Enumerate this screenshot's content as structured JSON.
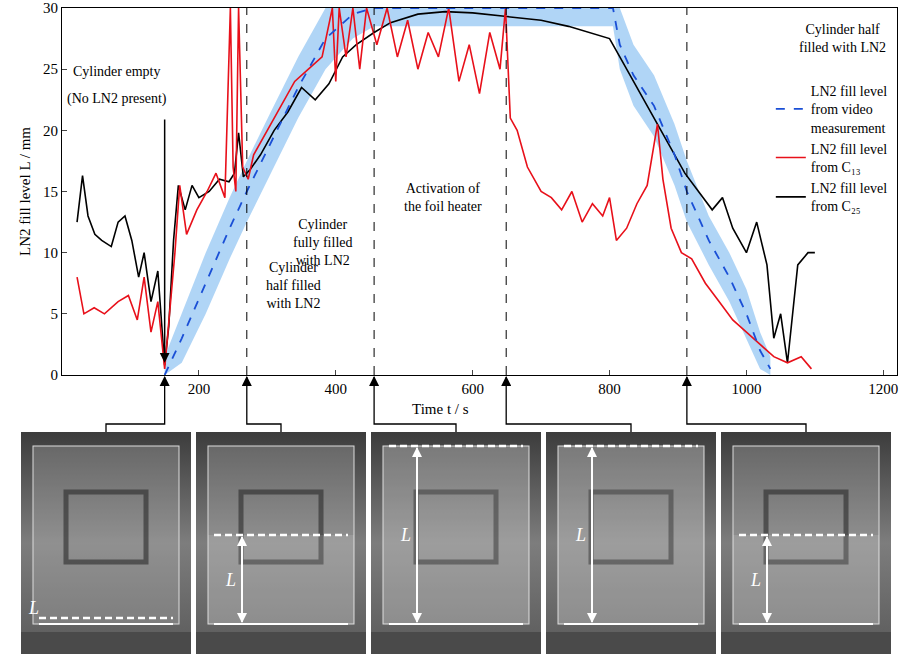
{
  "chart_data": {
    "type": "line",
    "xlabel": "Time t / s",
    "ylabel": "LN2 fill level L / mm",
    "xlim": [
      0,
      1220
    ],
    "ylim": [
      0,
      30
    ],
    "xticks": [
      200,
      400,
      600,
      800,
      1000,
      1200
    ],
    "yticks": [
      0,
      5,
      10,
      15,
      20,
      25,
      30
    ],
    "grid": false,
    "legend": "right",
    "series": [
      {
        "name": "LN2 fill level from C₂₅",
        "color": "#000000",
        "line_style": "solid",
        "x": [
          22,
          30,
          38,
          48,
          58,
          72,
          82,
          92,
          102,
          112,
          120,
          130,
          140,
          150,
          156,
          163,
          170,
          180,
          190,
          200,
          215,
          230,
          244,
          252,
          258,
          265,
          275,
          290,
          310,
          330,
          350,
          370,
          390,
          410,
          430,
          456,
          480,
          520,
          560,
          600,
          650,
          700,
          740,
          770,
          800,
          815,
          830,
          850,
          870,
          890,
          910,
          930,
          950,
          965,
          980,
          1000,
          1015,
          1030,
          1040,
          1050,
          1060,
          1075,
          1090,
          1100
        ],
        "values": [
          12.5,
          16.3,
          13,
          11.5,
          11,
          10.5,
          12.5,
          13,
          11,
          8,
          10,
          6,
          8.5,
          0.8,
          4,
          11,
          15.5,
          13.5,
          15.5,
          14.5,
          15,
          16,
          15.8,
          16.5,
          19.8,
          16.2,
          16.8,
          18,
          20,
          21.5,
          23.5,
          22.5,
          23.8,
          26,
          27,
          28,
          28.8,
          29.5,
          29.7,
          29.6,
          29.3,
          29,
          28.5,
          28,
          27.5,
          26,
          24.5,
          22.5,
          20.5,
          18.5,
          16.5,
          15,
          13.5,
          14.5,
          12,
          10,
          12.5,
          9,
          3,
          5,
          1,
          9,
          10,
          10
        ]
      },
      {
        "name": "LN2 fill level from C₁₃",
        "color": "#e8101a",
        "line_style": "solid",
        "x": [
          22,
          32,
          47,
          62,
          82,
          97,
          110,
          120,
          130,
          140,
          150,
          157,
          165,
          172,
          182,
          197,
          212,
          225,
          238,
          246,
          250,
          254,
          258,
          264,
          272,
          280,
          300,
          320,
          340,
          360,
          380,
          395,
          400,
          405,
          415,
          425,
          435,
          445,
          460,
          475,
          490,
          505,
          520,
          535,
          550,
          565,
          580,
          595,
          610,
          625,
          640,
          648,
          655,
          665,
          680,
          700,
          715,
          730,
          745,
          760,
          775,
          790,
          800,
          810,
          825,
          840,
          855,
          870,
          878,
          890,
          905,
          920,
          940,
          960,
          980,
          1000,
          1020,
          1040,
          1060,
          1080,
          1095
        ],
        "values": [
          8,
          5,
          5.5,
          5,
          6,
          6.5,
          4.5,
          8,
          3.5,
          6,
          0.5,
          5,
          10,
          15.5,
          11.5,
          13.5,
          15,
          16.5,
          14.5,
          30,
          17,
          15,
          30,
          17,
          16,
          18,
          20,
          22,
          24,
          25,
          26,
          30,
          24,
          30,
          26,
          30,
          25,
          30,
          27,
          30,
          26,
          29,
          25,
          28,
          26,
          30,
          24,
          27,
          23,
          28,
          25,
          30,
          21,
          20,
          17,
          15,
          14.5,
          13.5,
          15,
          12.5,
          14,
          13,
          14.5,
          11,
          12,
          14,
          15.5,
          20.5,
          16,
          12,
          10,
          9.5,
          7.5,
          6,
          4.5,
          3.5,
          2.5,
          1.5,
          1,
          1.5,
          0.5
        ]
      },
      {
        "name": "LN2 fill level from video measurement",
        "color": "#1a4fd6",
        "line_style": "dashed",
        "x": [
          150,
          175,
          210,
          245,
          270,
          305,
          345,
          385,
          425,
          456,
          805,
          815,
          835,
          865,
          895,
          913,
          945,
          975,
          1000,
          1020,
          1035
        ],
        "values": [
          0,
          3,
          7.5,
          12,
          15,
          19,
          23.5,
          27.5,
          29.5,
          30,
          30,
          27,
          24.5,
          22,
          18,
          15,
          11,
          8,
          5,
          2,
          0.5
        ],
        "band": {
          "color": "#8fc3f2",
          "lower": [
            0,
            1,
            5,
            9.5,
            12.5,
            16.5,
            21,
            25,
            27.5,
            28.5,
            28.5,
            25,
            22,
            19.5,
            15.5,
            12.5,
            9,
            6,
            3,
            0.5,
            0
          ],
          "upper": [
            1.5,
            5,
            10,
            14.5,
            17.5,
            21.5,
            26,
            30,
            30,
            30,
            30,
            30,
            27,
            24.5,
            20.5,
            17.5,
            13,
            10,
            7,
            3.5,
            1.5
          ]
        }
      }
    ],
    "annotations": [
      {
        "lines": [
          "Cylinder empty"
        ],
        "x": 80,
        "y": 24.8
      },
      {
        "lines": [
          "(No LN2 present)"
        ],
        "x": 80,
        "y": 22.6
      },
      {
        "lines": [
          "Cylinder",
          "half filled",
          "with LN2"
        ],
        "x": 338,
        "y": 7.3
      },
      {
        "lines": [
          "Cylinder",
          "fully filled",
          "with LN2"
        ],
        "x": 382,
        "y": 10.8
      },
      {
        "lines": [
          "Activation of",
          "the foil heater"
        ],
        "x": 556,
        "y": 14.5
      },
      {
        "lines": [
          "Cylinder half",
          "filled with LN2"
        ],
        "x": 1141,
        "y": 27.5
      }
    ],
    "arrow": {
      "from": [
        150,
        21
      ],
      "to": [
        150,
        1
      ]
    },
    "event_times": [
      270,
      456,
      649,
      913
    ],
    "photos": [
      {
        "time": 150,
        "label": "L"
      },
      {
        "time": 270,
        "label": "L"
      },
      {
        "time": 456,
        "label": "L"
      },
      {
        "time": 649,
        "label": "L"
      },
      {
        "time": 913,
        "label": "L"
      }
    ]
  }
}
